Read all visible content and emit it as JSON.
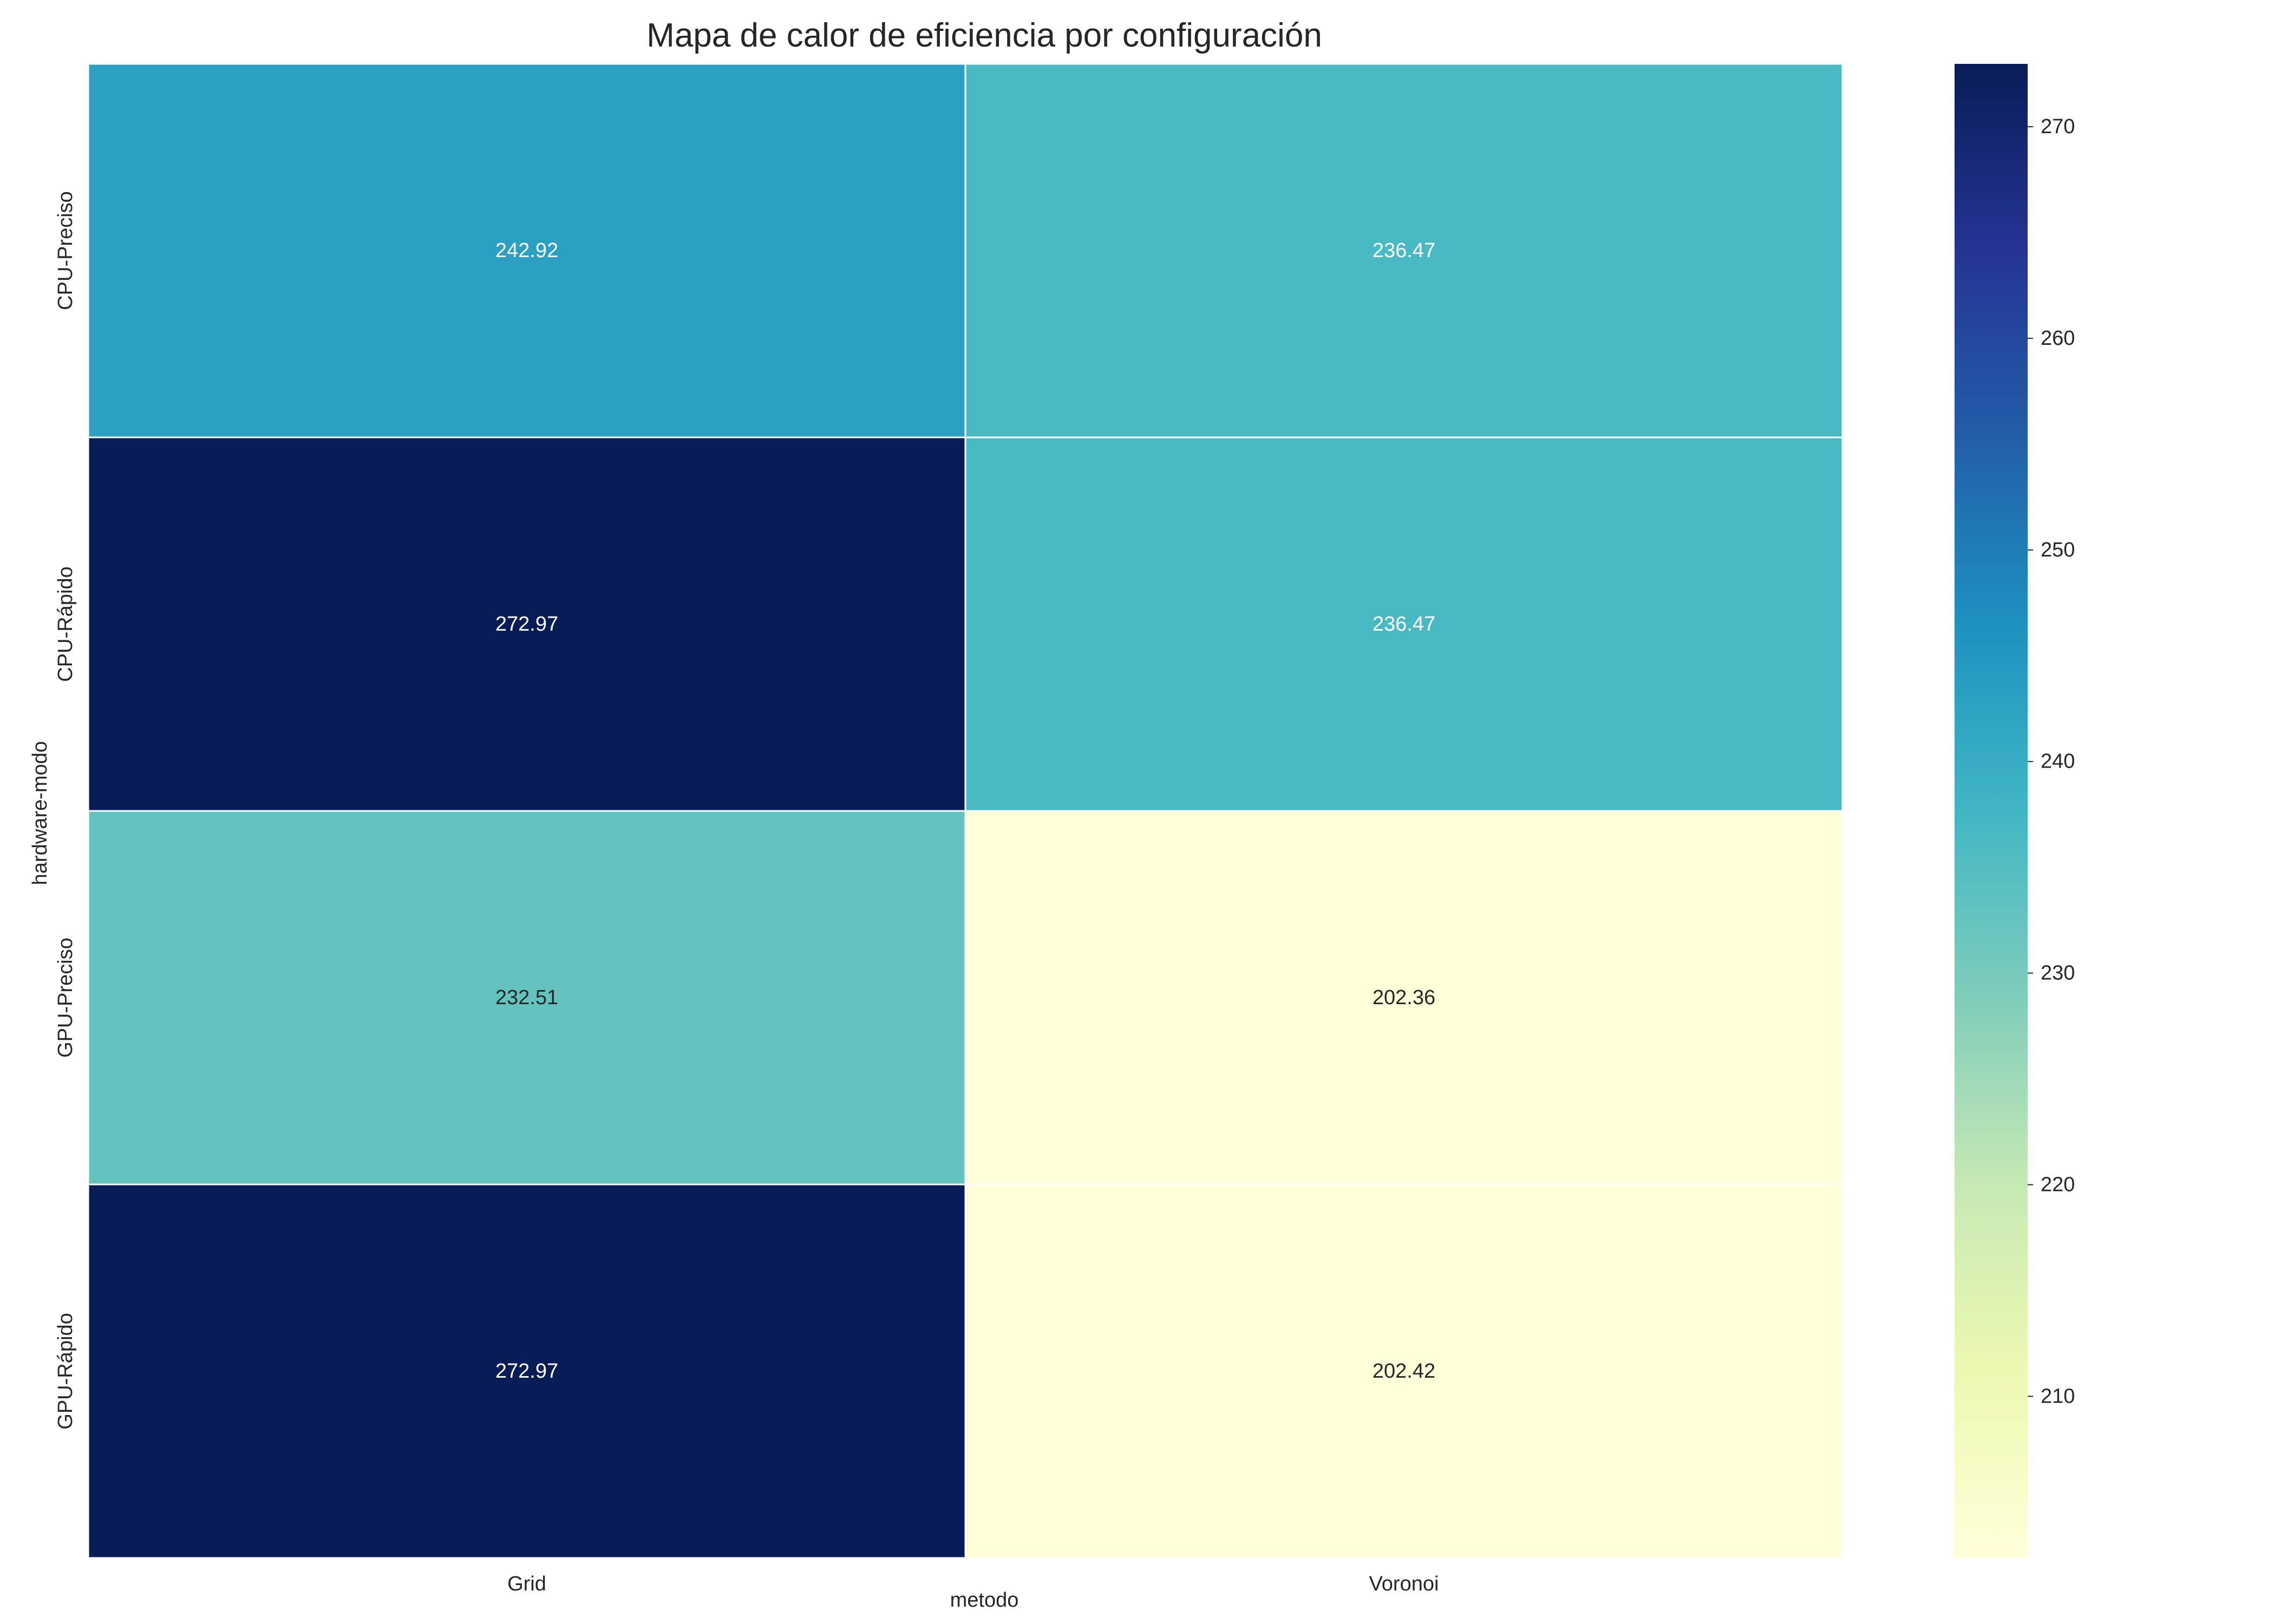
{
  "chart_data": {
    "type": "heatmap",
    "title": "Mapa de calor de eficiencia por configuración",
    "xlabel": "metodo",
    "ylabel": "hardware-modo",
    "x_categories": [
      "Grid",
      "Voronoi"
    ],
    "y_categories": [
      "CPU-Preciso",
      "CPU-Rápido",
      "GPU-Preciso",
      "GPU-Rápido"
    ],
    "values": [
      [
        242.92,
        236.47
      ],
      [
        272.97,
        236.47
      ],
      [
        232.51,
        202.36
      ],
      [
        272.97,
        202.42
      ]
    ],
    "cell_labels": [
      [
        "242.92",
        "236.47"
      ],
      [
        "272.97",
        "236.47"
      ],
      [
        "232.51",
        "202.36"
      ],
      [
        "272.97",
        "202.42"
      ]
    ],
    "colormap": "YlGnBu",
    "vmin": 202.36,
    "vmax": 272.97,
    "colorbar_ticks": [
      210,
      220,
      230,
      240,
      250,
      260,
      270
    ],
    "colorbar_tick_labels": [
      "210",
      "220",
      "230",
      "240",
      "250",
      "260",
      "270"
    ],
    "grid": false,
    "colors": {
      "cell_border": "#ffffff",
      "text_dark": "#262626",
      "text_light": "#ffffff"
    }
  }
}
